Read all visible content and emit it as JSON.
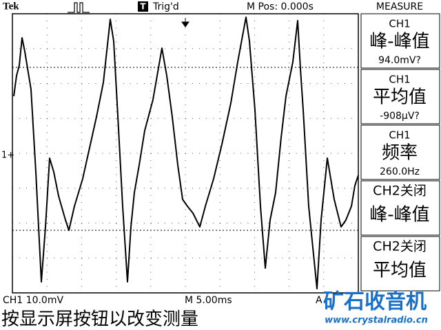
{
  "header": {
    "brand": "Tek",
    "trigger_badge": "T",
    "trigger_status": "Trig'd",
    "position": "M Pos: 0.000s",
    "menu_title": "MEASURE"
  },
  "channel_marker": "1+",
  "measurements": [
    {
      "source": "CH1",
      "label": "峰-峰值",
      "value": "94.0mV?"
    },
    {
      "source": "CH1",
      "label": "平均值",
      "value": "-908μV?"
    },
    {
      "source": "CH1",
      "label": "频率",
      "value": "260.0Hz"
    },
    {
      "source": "CH2关闭",
      "label": "峰-峰值"
    },
    {
      "source": "CH2关闭",
      "label": "平均值"
    }
  ],
  "footer": {
    "channel_scale": "CH1  10.0mV",
    "time_scale": "M 5.00ms",
    "trigger_source": "A",
    "hint": "按显示屏按钮以改变测量"
  },
  "watermark": {
    "title": "矿石收音机",
    "url": "www.crystalradio.cn"
  }
}
